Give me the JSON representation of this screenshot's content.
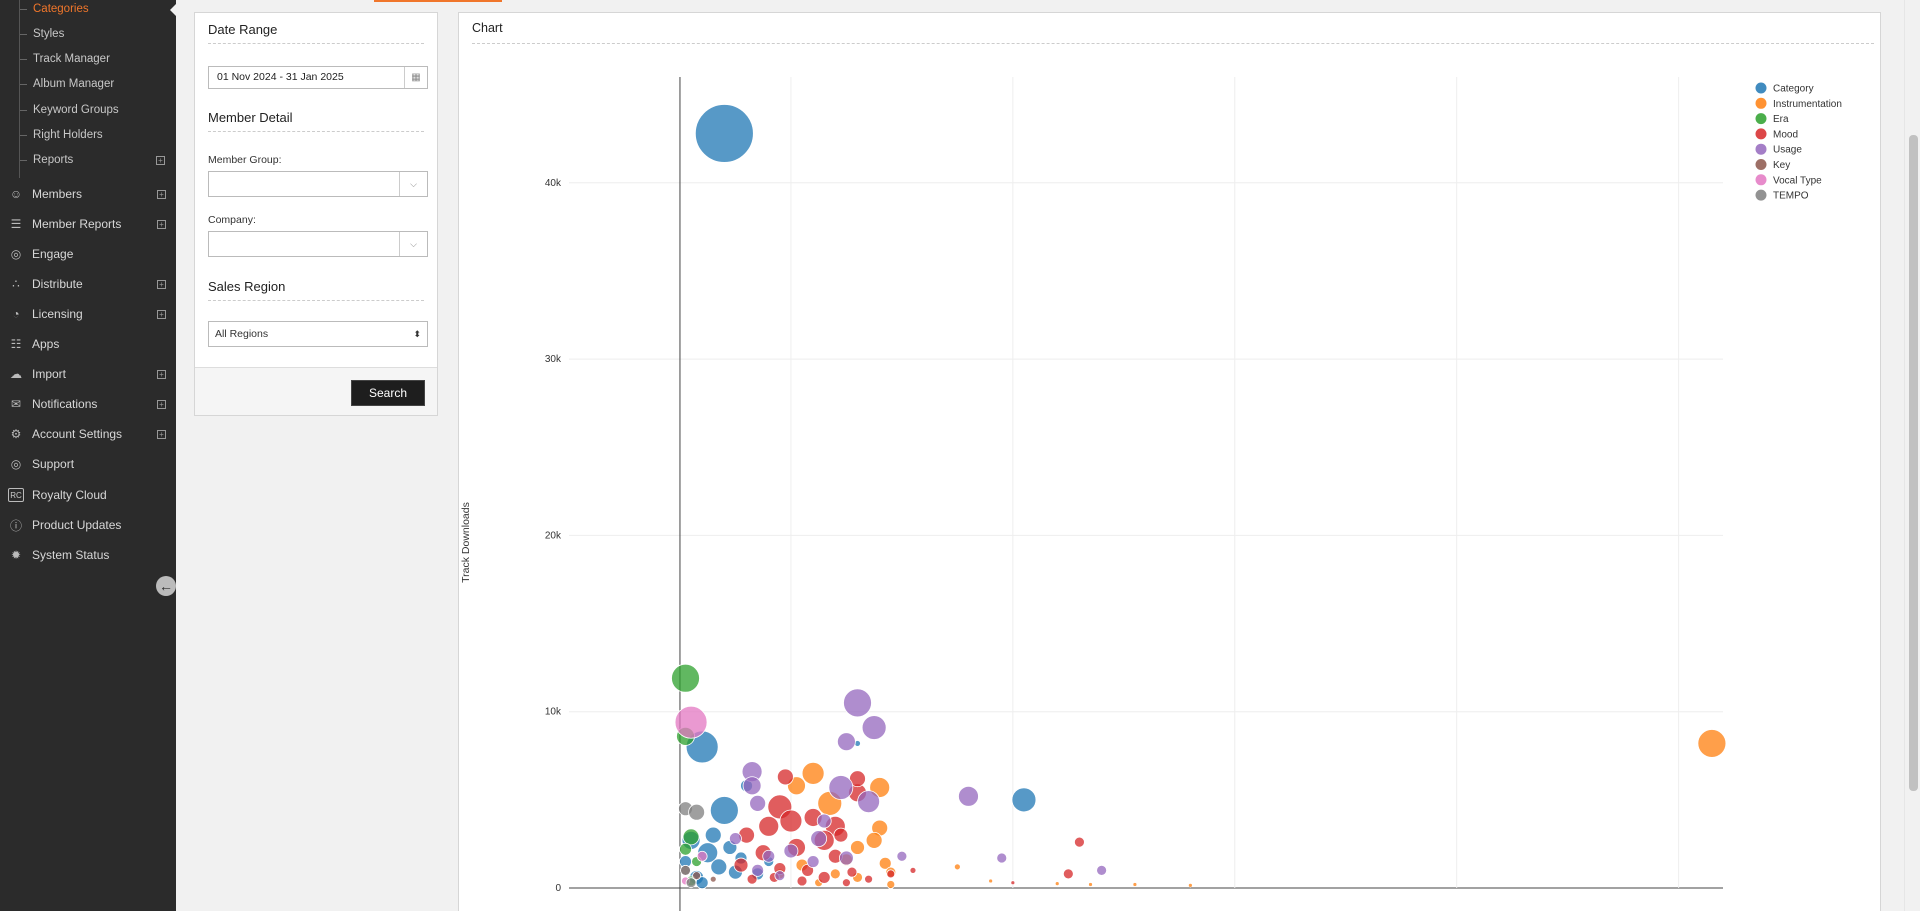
{
  "sidebar": {
    "sub_items": [
      {
        "label": "Categories",
        "active": true
      },
      {
        "label": "Styles"
      },
      {
        "label": "Track Manager"
      },
      {
        "label": "Album Manager"
      },
      {
        "label": "Keyword Groups"
      },
      {
        "label": "Right Holders"
      },
      {
        "label": "Reports",
        "expandable": true
      }
    ],
    "nav_items": [
      {
        "label": "Members",
        "icon": "members-icon",
        "expandable": true
      },
      {
        "label": "Member Reports",
        "icon": "document-icon",
        "expandable": true
      },
      {
        "label": "Engage",
        "icon": "target-icon"
      },
      {
        "label": "Distribute",
        "icon": "share-icon",
        "expandable": true
      },
      {
        "label": "Licensing",
        "icon": "pie-chart-icon",
        "expandable": true
      },
      {
        "label": "Apps",
        "icon": "sitemap-icon"
      },
      {
        "label": "Import",
        "icon": "cloud-icon",
        "expandable": true
      },
      {
        "label": "Notifications",
        "icon": "mail-icon",
        "expandable": true
      },
      {
        "label": "Account Settings",
        "icon": "gear-icon",
        "expandable": true
      },
      {
        "label": "Support",
        "icon": "lifebuoy-icon"
      },
      {
        "label": "Royalty Cloud",
        "icon": "rc-icon",
        "icon_text": "RC"
      },
      {
        "label": "Product Updates",
        "icon": "info-icon"
      },
      {
        "label": "System Status",
        "icon": "badge-icon"
      }
    ],
    "collapse_icon": "arrow-left-circle-icon"
  },
  "filters": {
    "date_range": {
      "title": "Date Range",
      "value": "01 Nov 2024 - 31 Jan 2025"
    },
    "member_detail": {
      "title": "Member Detail",
      "member_group_label": "Member Group:",
      "member_group_value": "",
      "company_label": "Company:",
      "company_value": ""
    },
    "sales_region": {
      "title": "Sales Region",
      "value": "All Regions"
    },
    "search_label": "Search"
  },
  "chart": {
    "title": "Chart"
  },
  "chart_data": {
    "type": "scatter",
    "ylabel": "Track Downloads",
    "xlabel": "",
    "ylim": [
      0,
      46000
    ],
    "yticks": [
      {
        "v": 0,
        "label": "0"
      },
      {
        "v": 10000,
        "label": "10k"
      },
      {
        "v": 20000,
        "label": "20k"
      },
      {
        "v": 30000,
        "label": "30k"
      },
      {
        "v": 40000,
        "label": "40k"
      }
    ],
    "xlim": [
      -1,
      9.4
    ],
    "xgrid": [
      1,
      3,
      5,
      7,
      9
    ],
    "legend_position": "top-right",
    "series": [
      {
        "name": "Category",
        "color": "#1f77b4",
        "points": [
          [
            0.4,
            42800,
            29
          ],
          [
            0.2,
            8000,
            16
          ],
          [
            0.4,
            4400,
            14
          ],
          [
            0.1,
            2700,
            9
          ],
          [
            0.25,
            2000,
            10
          ],
          [
            0.35,
            1200,
            8
          ],
          [
            0.15,
            600,
            7
          ],
          [
            0.5,
            900,
            7
          ],
          [
            0.05,
            1500,
            6
          ],
          [
            0.3,
            3000,
            8
          ],
          [
            0.45,
            2300,
            7
          ],
          [
            0.6,
            5800,
            6
          ],
          [
            0.7,
            800,
            6
          ],
          [
            0.8,
            1500,
            5
          ],
          [
            3.1,
            5000,
            12
          ],
          [
            1.6,
            8200,
            3
          ],
          [
            0.2,
            300,
            6
          ],
          [
            0.55,
            1700,
            6
          ]
        ]
      },
      {
        "name": "Instrumentation",
        "color": "#ff7f0e",
        "points": [
          [
            9.3,
            8200,
            14
          ],
          [
            1.2,
            6500,
            11
          ],
          [
            1.05,
            5800,
            9
          ],
          [
            1.35,
            4800,
            12
          ],
          [
            1.8,
            5700,
            10
          ],
          [
            1.8,
            3400,
            8
          ],
          [
            1.6,
            2300,
            7
          ],
          [
            1.5,
            1600,
            6
          ],
          [
            1.85,
            1400,
            6
          ],
          [
            1.75,
            2700,
            8
          ],
          [
            1.1,
            1300,
            6
          ],
          [
            1.6,
            600,
            5
          ],
          [
            1.25,
            300,
            4
          ],
          [
            1.9,
            900,
            5
          ],
          [
            0.9,
            800,
            5
          ],
          [
            2.5,
            1200,
            3
          ],
          [
            2.8,
            400,
            2
          ],
          [
            3.4,
            250,
            2
          ],
          [
            3.7,
            200,
            2
          ],
          [
            4.1,
            200,
            2
          ],
          [
            4.6,
            150,
            2
          ],
          [
            1.9,
            200,
            4
          ],
          [
            1.4,
            800,
            5
          ]
        ]
      },
      {
        "name": "Era",
        "color": "#2ca02c",
        "points": [
          [
            0.05,
            11900,
            14
          ],
          [
            0.05,
            8600,
            9
          ],
          [
            0.1,
            2900,
            8
          ],
          [
            0.05,
            2200,
            6
          ],
          [
            0.15,
            1500,
            5
          ],
          [
            0.1,
            400,
            5
          ]
        ]
      },
      {
        "name": "Mood",
        "color": "#d62728",
        "points": [
          [
            0.8,
            3500,
            10
          ],
          [
            0.9,
            4600,
            12
          ],
          [
            1.0,
            3800,
            11
          ],
          [
            1.2,
            4000,
            9
          ],
          [
            1.4,
            3500,
            10
          ],
          [
            1.6,
            5400,
            9
          ],
          [
            1.3,
            2700,
            10
          ],
          [
            1.05,
            2300,
            9
          ],
          [
            0.75,
            2000,
            8
          ],
          [
            0.6,
            3000,
            8
          ],
          [
            0.55,
            1300,
            7
          ],
          [
            0.9,
            1100,
            6
          ],
          [
            1.15,
            1000,
            6
          ],
          [
            1.4,
            1800,
            7
          ],
          [
            0.85,
            600,
            5
          ],
          [
            1.1,
            400,
            5
          ],
          [
            1.3,
            600,
            6
          ],
          [
            1.55,
            900,
            5
          ],
          [
            1.5,
            300,
            4
          ],
          [
            1.7,
            500,
            4
          ],
          [
            1.9,
            800,
            4
          ],
          [
            0.65,
            500,
            5
          ],
          [
            2.1,
            1000,
            3
          ],
          [
            3.6,
            2600,
            5
          ],
          [
            3.5,
            800,
            5
          ],
          [
            3.0,
            300,
            2
          ],
          [
            0.95,
            6300,
            8
          ],
          [
            1.6,
            6200,
            8
          ],
          [
            1.45,
            3000,
            7
          ]
        ]
      },
      {
        "name": "Usage",
        "color": "#9467bd",
        "points": [
          [
            1.6,
            10500,
            14
          ],
          [
            1.75,
            9100,
            12
          ],
          [
            1.5,
            8300,
            9
          ],
          [
            0.65,
            6600,
            10
          ],
          [
            0.65,
            5800,
            9
          ],
          [
            1.45,
            5700,
            12
          ],
          [
            1.7,
            4900,
            11
          ],
          [
            2.6,
            5200,
            10
          ],
          [
            0.7,
            4800,
            8
          ],
          [
            1.3,
            3800,
            7
          ],
          [
            1.25,
            2800,
            8
          ],
          [
            1.0,
            2100,
            7
          ],
          [
            0.8,
            1800,
            6
          ],
          [
            0.7,
            1000,
            6
          ],
          [
            1.5,
            1700,
            7
          ],
          [
            1.2,
            1500,
            6
          ],
          [
            2.0,
            1800,
            5
          ],
          [
            2.9,
            1700,
            5
          ],
          [
            3.8,
            1000,
            5
          ],
          [
            0.5,
            2800,
            6
          ],
          [
            0.9,
            700,
            5
          ]
        ]
      },
      {
        "name": "Key",
        "color": "#8c564b",
        "points": [
          [
            0.05,
            1000,
            5
          ],
          [
            0.15,
            700,
            4
          ],
          [
            0.3,
            500,
            3
          ]
        ]
      },
      {
        "name": "Vocal Type",
        "color": "#e377c2",
        "points": [
          [
            0.1,
            9400,
            16
          ],
          [
            0.2,
            1800,
            5
          ],
          [
            0.05,
            400,
            4
          ]
        ]
      },
      {
        "name": "TEMPO",
        "color": "#7f7f7f",
        "points": [
          [
            0.05,
            4500,
            7
          ],
          [
            0.15,
            4300,
            8
          ],
          [
            0.05,
            1000,
            5
          ],
          [
            0.1,
            300,
            5
          ]
        ]
      }
    ]
  }
}
